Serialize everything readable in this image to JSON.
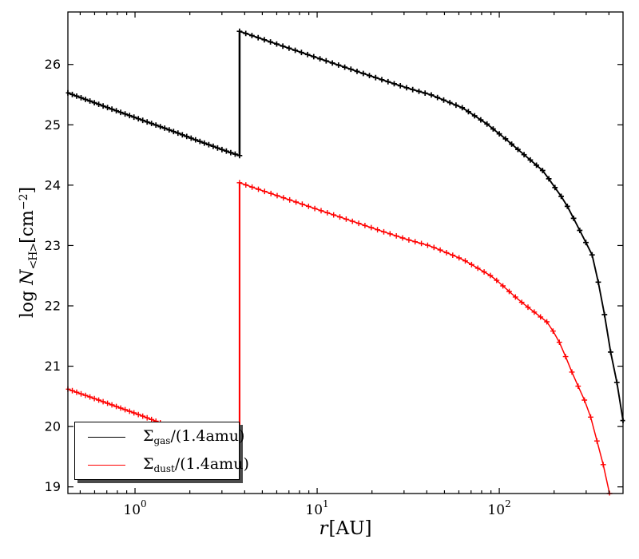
{
  "figure": {
    "background": "#ffffff",
    "title": ""
  },
  "labels": {
    "ylabel": {
      "log": "log",
      "n": "N",
      "sub": "<H>",
      "unit_open": "[cm",
      "exp": "−2",
      "unit_close": "]"
    },
    "xlabel": {
      "var": "r",
      "unit": "[AU]"
    }
  },
  "legend": {
    "position": "lower left",
    "entries": [
      {
        "symbol": "Σ",
        "sub": "gas",
        "rest": "/(1.4amu)",
        "color": "#000000"
      },
      {
        "symbol": "Σ",
        "sub": "dust",
        "rest": "/(1.4amu)",
        "color": "#ff0000"
      }
    ]
  },
  "chart_data": {
    "type": "line",
    "title": "",
    "xlabel": "r [AU]",
    "ylabel": "log N_<H> [cm^-2]",
    "x_scale": "log",
    "y_scale": "linear",
    "xlim": [
      0.428,
      478
    ],
    "ylim": [
      18.89,
      26.87
    ],
    "grid": false,
    "x_major_ticks": [
      1,
      10,
      100
    ],
    "x_tick_labels": [
      {
        "base": "10",
        "exp": "0"
      },
      {
        "base": "10",
        "exp": "1"
      },
      {
        "base": "10",
        "exp": "2"
      }
    ],
    "y_ticks": [
      19,
      20,
      21,
      22,
      23,
      24,
      25,
      26
    ],
    "legend_position": "lower left",
    "series": [
      {
        "name": "Σ_gas/(1.4amu)",
        "color": "#000000",
        "marker": "+",
        "line_width": 1.9,
        "jump_r": 3.75,
        "points_pre_jump": [
          [
            0.428,
            25.53
          ],
          [
            0.7,
            25.29
          ],
          [
            1.0,
            25.12
          ],
          [
            1.5,
            24.93
          ],
          [
            2.2,
            24.74
          ],
          [
            3.0,
            24.59
          ],
          [
            3.75,
            24.49
          ]
        ],
        "points_post_jump": [
          [
            3.75,
            26.55
          ],
          [
            5,
            26.42
          ],
          [
            7,
            26.27
          ],
          [
            10,
            26.11
          ],
          [
            15,
            25.93
          ],
          [
            22,
            25.76
          ],
          [
            32,
            25.6
          ],
          [
            42,
            25.5
          ],
          [
            63,
            25.28
          ],
          [
            85,
            25.02
          ],
          [
            105,
            24.8
          ],
          [
            140,
            24.48
          ],
          [
            175,
            24.23
          ],
          [
            230,
            23.72
          ],
          [
            290,
            23.13
          ],
          [
            330,
            22.79
          ],
          [
            390,
            21.64
          ],
          [
            420,
            21.0
          ],
          [
            455,
            20.58
          ],
          [
            478,
            20.1
          ]
        ]
      },
      {
        "name": "Σ_dust/(1.4amu)",
        "color": "#ff0000",
        "marker": "+",
        "line_width": 1.5,
        "jump_r": 3.75,
        "points_pre_jump": [
          [
            0.428,
            20.62
          ],
          [
            0.7,
            20.39
          ],
          [
            1.0,
            20.22
          ],
          [
            1.5,
            20.02
          ],
          [
            2.2,
            19.84
          ],
          [
            3.0,
            19.7
          ],
          [
            3.75,
            19.6
          ]
        ],
        "points_post_jump": [
          [
            3.75,
            24.04
          ],
          [
            5,
            23.91
          ],
          [
            7,
            23.76
          ],
          [
            10,
            23.6
          ],
          [
            15,
            23.42
          ],
          [
            22,
            23.25
          ],
          [
            32,
            23.09
          ],
          [
            42,
            22.99
          ],
          [
            63,
            22.77
          ],
          [
            92,
            22.48
          ],
          [
            130,
            22.08
          ],
          [
            187,
            21.71
          ],
          [
            218,
            21.35
          ],
          [
            253,
            20.87
          ],
          [
            310,
            20.28
          ],
          [
            333,
            19.92
          ],
          [
            361,
            19.52
          ],
          [
            391,
            19.13
          ],
          [
            403,
            18.89
          ]
        ]
      }
    ]
  }
}
